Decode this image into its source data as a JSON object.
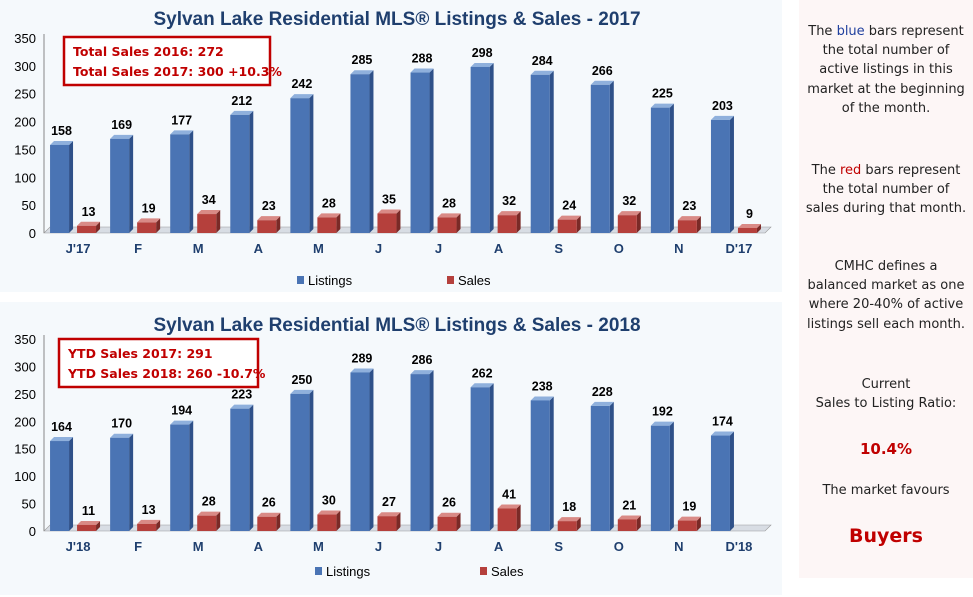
{
  "charts": [
    {
      "title": "Sylvan Lake Residential MLS® Listings & Sales - 2017",
      "annotation": [
        "Total Sales 2016: 272",
        "Total Sales 2017: 300  +10.3%"
      ],
      "legend": [
        "Listings",
        "Sales"
      ]
    },
    {
      "title": "Sylvan Lake Residential MLS® Listings & Sales - 2018",
      "annotation": [
        "YTD Sales 2017: 291",
        "YTD Sales 2018: 260    -10.7%"
      ],
      "legend": [
        "Listings",
        "Sales"
      ]
    }
  ],
  "chart_data": [
    {
      "type": "bar",
      "title": "Sylvan Lake Residential MLS® Listings & Sales - 2017",
      "categories": [
        "J'17",
        "F",
        "M",
        "A",
        "M",
        "J",
        "J",
        "A",
        "S",
        "O",
        "N",
        "D'17"
      ],
      "series": [
        {
          "name": "Listings",
          "color": "#4a74b4",
          "values": [
            158,
            169,
            177,
            212,
            242,
            285,
            288,
            298,
            284,
            266,
            225,
            203
          ]
        },
        {
          "name": "Sales",
          "color": "#b5403c",
          "values": [
            13,
            19,
            34,
            23,
            28,
            35,
            28,
            32,
            24,
            32,
            23,
            9
          ]
        }
      ],
      "yticks": [
        0,
        50,
        100,
        150,
        200,
        250,
        300,
        350
      ],
      "ylim": [
        0,
        350
      ],
      "legend_position": "bottom"
    },
    {
      "type": "bar",
      "title": "Sylvan Lake Residential MLS® Listings & Sales - 2018",
      "categories": [
        "J'18",
        "F",
        "M",
        "A",
        "M",
        "J",
        "J",
        "A",
        "S",
        "O",
        "N",
        "D'18"
      ],
      "series": [
        {
          "name": "Listings",
          "color": "#4a74b4",
          "values": [
            164,
            170,
            194,
            223,
            250,
            289,
            286,
            262,
            238,
            228,
            192,
            174
          ]
        },
        {
          "name": "Sales",
          "color": "#b5403c",
          "values": [
            11,
            13,
            28,
            26,
            30,
            27,
            26,
            41,
            18,
            21,
            19,
            null
          ]
        }
      ],
      "yticks": [
        0,
        50,
        100,
        150,
        200,
        250,
        300,
        350
      ],
      "ylim": [
        0,
        350
      ],
      "legend_position": "bottom"
    }
  ],
  "sidebar": {
    "p1_a": "The ",
    "p1_blue": "blue",
    "p1_b": " bars represent the total number of active listings in this market at the beginning of the month.",
    "p2_a": "The ",
    "p2_red": "red",
    "p2_b": " bars represent the total number of sales during that month.",
    "p3": "CMHC defines a balanced market as one where 20-40% of active listings sell each month.",
    "p4_line1": "Current",
    "p4_line2": "Sales to Listing Ratio:",
    "ratio": "10.4%",
    "p5": "The market favours",
    "verdict": "Buyers"
  }
}
